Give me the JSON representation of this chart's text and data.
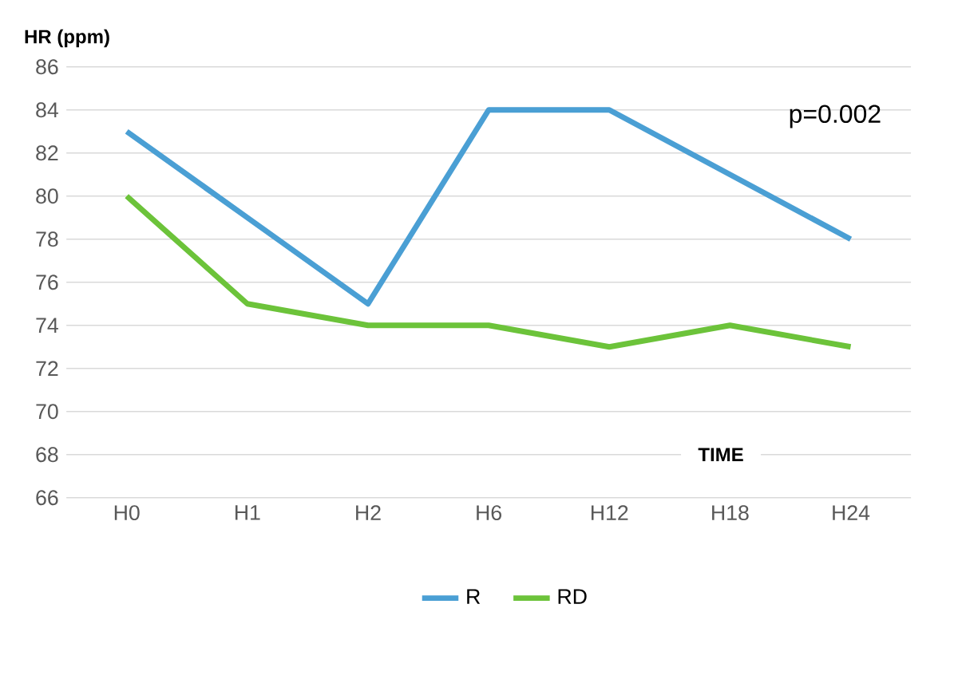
{
  "chart_data": {
    "type": "line",
    "ylabel": "HR (ppm)",
    "xlabel": "TIME",
    "categories": [
      "H0",
      "H1",
      "H2",
      "H6",
      "H12",
      "H18",
      "H24"
    ],
    "series": [
      {
        "name": "R",
        "color": "#4a9fd4",
        "values": [
          83,
          79,
          75,
          84,
          84,
          81,
          78
        ]
      },
      {
        "name": "RD",
        "color": "#6cc33a",
        "values": [
          80,
          75,
          74,
          74,
          73,
          74,
          73
        ]
      }
    ],
    "ylim": [
      66,
      86
    ],
    "yticks": [
      66,
      68,
      70,
      72,
      74,
      76,
      78,
      80,
      82,
      84,
      86
    ],
    "grid": "y",
    "legend": "bottom",
    "marker": "none",
    "line_style": "solid",
    "annotations": [
      "p=0.002"
    ]
  }
}
